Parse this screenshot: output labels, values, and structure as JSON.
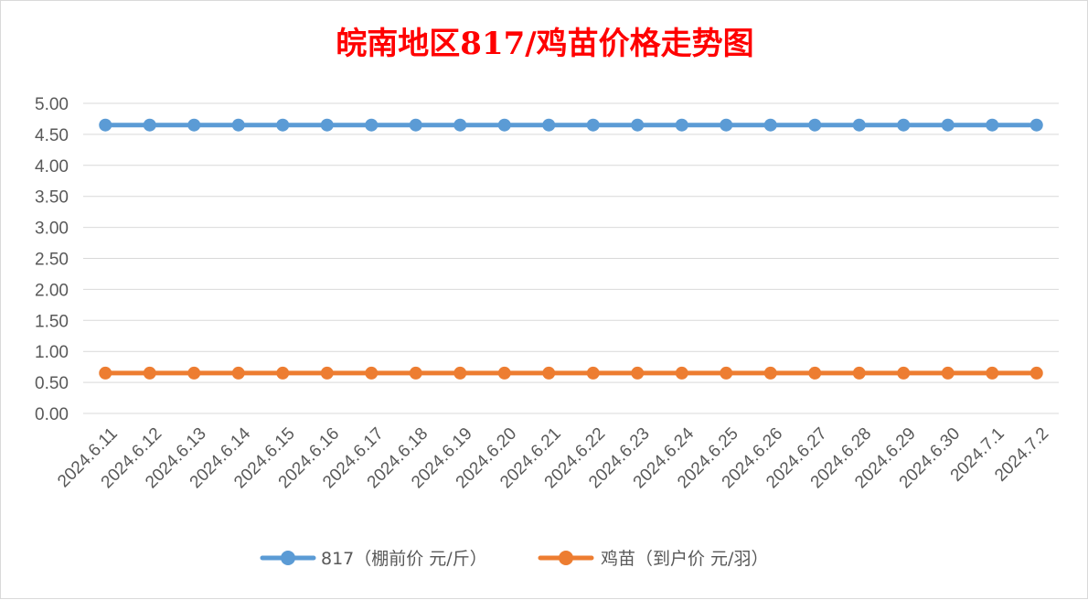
{
  "chart_data": {
    "type": "line",
    "title": "皖南地区817/鸡苗价格走势图",
    "xlabel": "",
    "ylabel": "",
    "categories": [
      "2024.6.11",
      "2024.6.12",
      "2024.6.13",
      "2024.6.14",
      "2024.6.15",
      "2024.6.16",
      "2024.6.17",
      "2024.6.18",
      "2024.6.19",
      "2024.6.20",
      "2024.6.21",
      "2024.6.22",
      "2024.6.23",
      "2024.6.24",
      "2024.6.25",
      "2024.6.26",
      "2024.6.27",
      "2024.6.28",
      "2024.6.29",
      "2024.6.30",
      "2024.7.1",
      "2024.7.2"
    ],
    "y_ticks": [
      "0.00",
      "0.50",
      "1.00",
      "1.50",
      "2.00",
      "2.50",
      "3.00",
      "3.50",
      "4.00",
      "4.50",
      "5.00"
    ],
    "ylim": [
      0,
      5
    ],
    "grid": true,
    "legend_position": "bottom",
    "series": [
      {
        "name": "817（棚前价 元/斤）",
        "color": "#5b9bd5",
        "values": [
          4.65,
          4.65,
          4.65,
          4.65,
          4.65,
          4.65,
          4.65,
          4.65,
          4.65,
          4.65,
          4.65,
          4.65,
          4.65,
          4.65,
          4.65,
          4.65,
          4.65,
          4.65,
          4.65,
          4.65,
          4.65,
          4.65
        ]
      },
      {
        "name": "鸡苗（到户价 元/羽）",
        "color": "#ed7d31",
        "values": [
          0.65,
          0.65,
          0.65,
          0.65,
          0.65,
          0.65,
          0.65,
          0.65,
          0.65,
          0.65,
          0.65,
          0.65,
          0.65,
          0.65,
          0.65,
          0.65,
          0.65,
          0.65,
          0.65,
          0.65,
          0.65,
          0.65
        ]
      }
    ]
  }
}
